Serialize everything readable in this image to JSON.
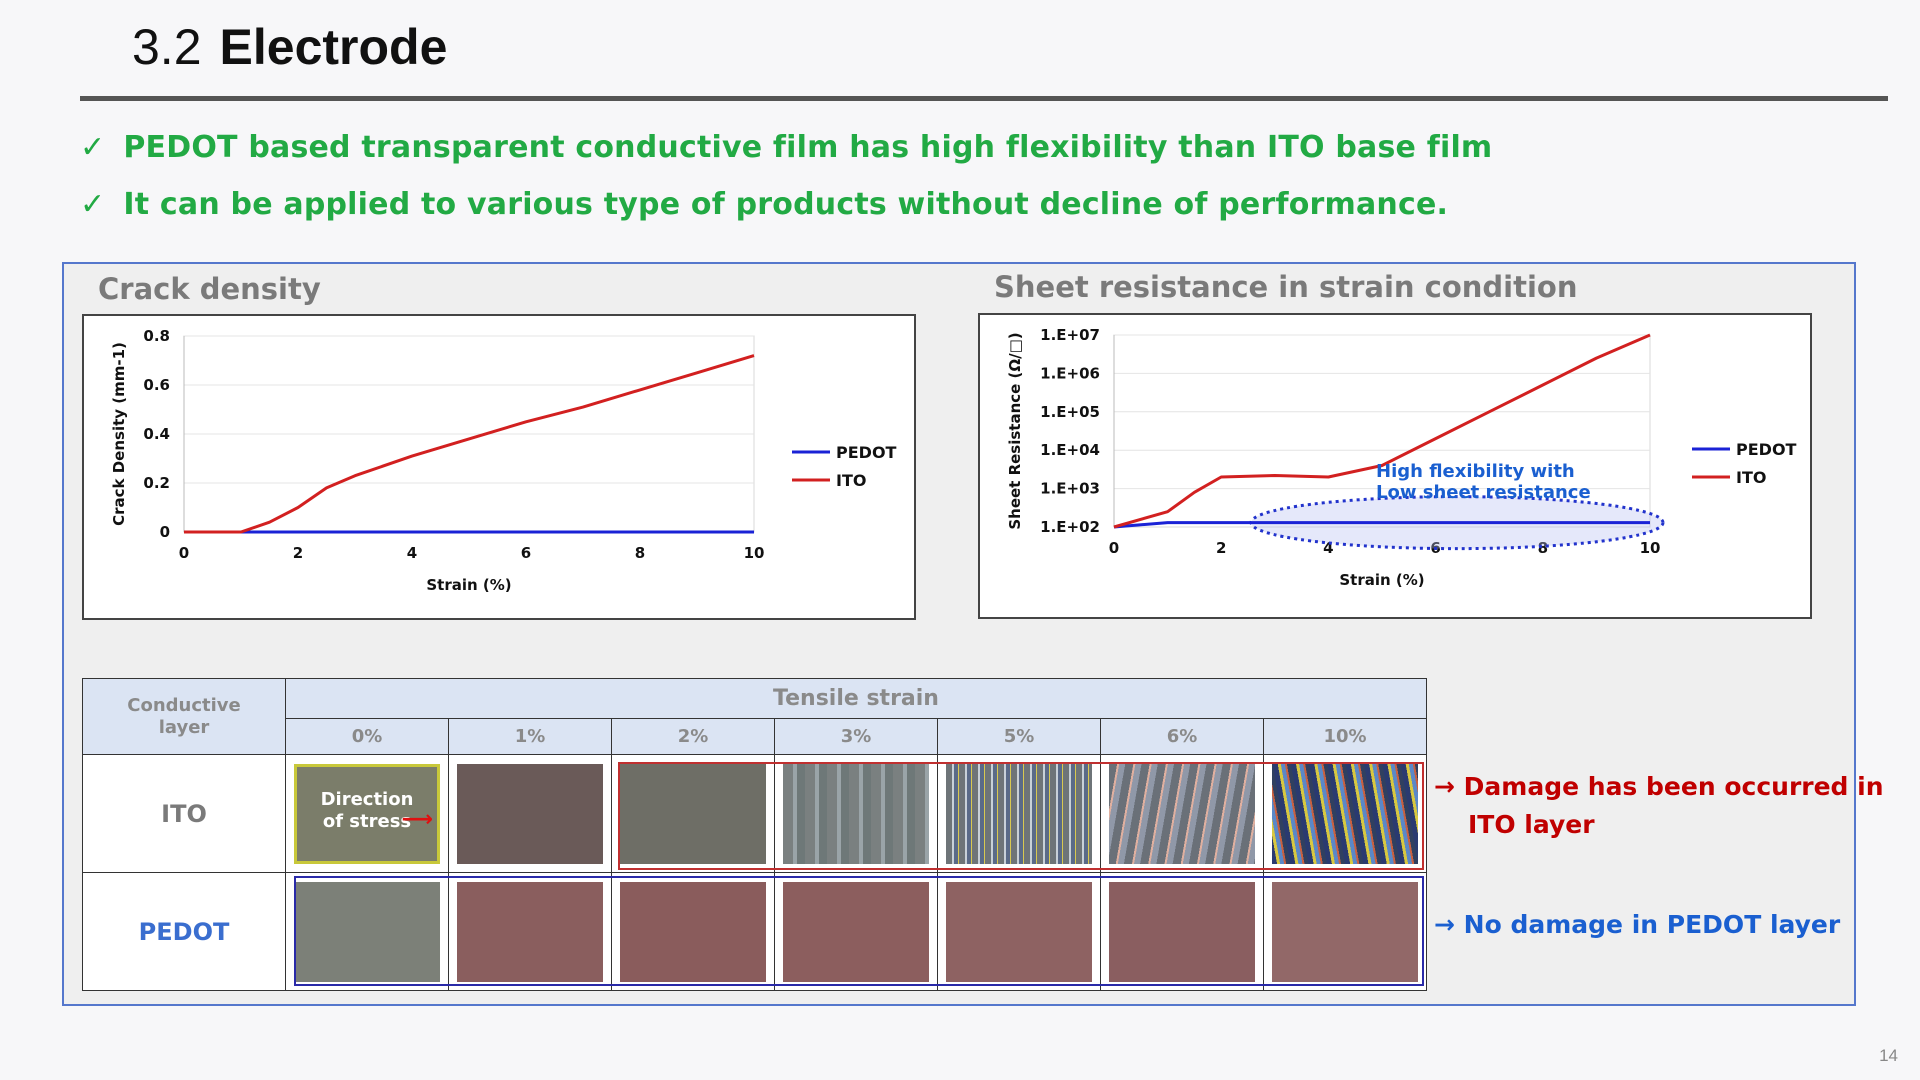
{
  "title": {
    "number": "3.2",
    "text": "Electrode"
  },
  "bullets": [
    {
      "mark": "✓",
      "text": "PEDOT based transparent conductive film has high flexibility than ITO base film"
    },
    {
      "mark": "✓",
      "text": "It can be applied to various type of products without decline of performance."
    }
  ],
  "chart_data": [
    {
      "type": "line",
      "title": "Crack density",
      "xlabel": "Strain (%)",
      "ylabel": "Crack Density (mm-1)",
      "xlim": [
        0,
        10
      ],
      "ylim": [
        0,
        0.8
      ],
      "xticks": [
        "0",
        "2",
        "4",
        "6",
        "8",
        "10"
      ],
      "yticks": [
        "0",
        "0.2",
        "0.4",
        "0.6",
        "0.8"
      ],
      "legend_position": "right",
      "series": [
        {
          "name": "PEDOT",
          "color": "#1a22d6",
          "x": [
            0,
            10
          ],
          "y": [
            0,
            0
          ]
        },
        {
          "name": "ITO",
          "color": "#d22020",
          "x": [
            0,
            0.5,
            1,
            1.5,
            2,
            2.5,
            3,
            4,
            5,
            6,
            7,
            8,
            9,
            10
          ],
          "y": [
            0,
            0,
            0,
            0.04,
            0.1,
            0.18,
            0.23,
            0.31,
            0.38,
            0.45,
            0.51,
            0.58,
            0.65,
            0.72
          ]
        }
      ]
    },
    {
      "type": "line",
      "title": "Sheet resistance in strain condition",
      "xlabel": "Strain (%)",
      "ylabel": "Sheet Resistance (Ω/□)",
      "xlim": [
        0,
        10
      ],
      "ylim": [
        "1.E+02",
        "1.E+07"
      ],
      "yscale": "log",
      "xticks": [
        "0",
        "2",
        "4",
        "6",
        "8",
        "10"
      ],
      "yticks": [
        "1.E+02",
        "1.E+03",
        "1.E+04",
        "1.E+05",
        "1.E+06",
        "1.E+07"
      ],
      "legend_position": "right",
      "annotation": [
        "High flexibility with",
        "Low sheet resistance"
      ],
      "series": [
        {
          "name": "PEDOT",
          "color": "#1a22d6",
          "x": [
            0,
            1,
            2,
            10
          ],
          "y": [
            100,
            130,
            130,
            130
          ]
        },
        {
          "name": "ITO",
          "color": "#d22020",
          "x": [
            0,
            1,
            1.5,
            2,
            3,
            4,
            5,
            6,
            7,
            8,
            9,
            10
          ],
          "y": [
            100,
            250,
            800,
            2000,
            2200,
            2000,
            4000,
            20000,
            100000,
            500000,
            2500000,
            10000000
          ]
        }
      ]
    }
  ],
  "table": {
    "corner": [
      "Conductive",
      "layer"
    ],
    "group_header": "Tensile strain",
    "columns": [
      "0%",
      "1%",
      "2%",
      "3%",
      "5%",
      "6%",
      "10%"
    ],
    "rows": [
      {
        "label": "ITO",
        "color": "#7a7a7a"
      },
      {
        "label": "PEDOT",
        "color": "#3a6ecf"
      }
    ],
    "direction_label": [
      "Direction",
      "of stress"
    ]
  },
  "notes": {
    "ito": {
      "arrow": "→",
      "line1": "Damage has been occurred in",
      "line2": "ITO layer",
      "color": "#c00000"
    },
    "pedot": {
      "arrow": "→",
      "text": "No damage in PEDOT layer",
      "color": "#1a5fd0"
    }
  },
  "page_number": "14"
}
